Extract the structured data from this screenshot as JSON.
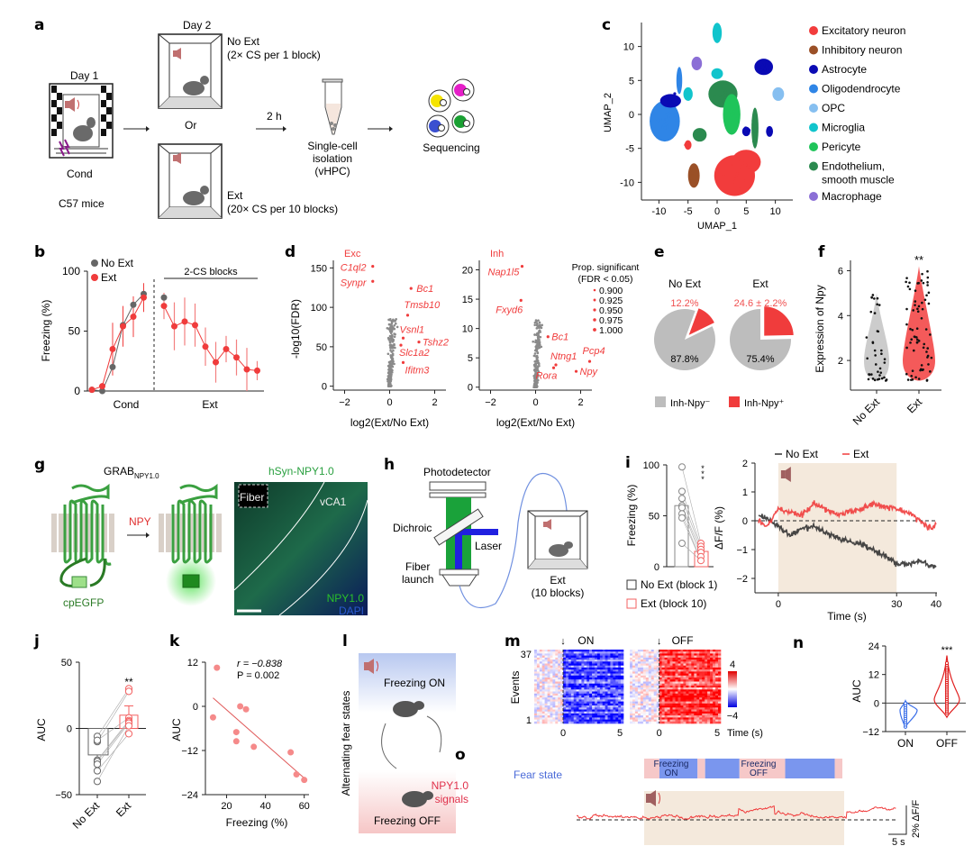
{
  "figure": {
    "panels": {
      "a": {
        "label": "a",
        "day1": "Day 1",
        "cond": "Cond",
        "mice": "C57 mice",
        "day2": "Day 2",
        "noext_title": "No Ext",
        "noext_sub": "(2× CS per 1 block)",
        "or": "Or",
        "ext_title": "Ext",
        "ext_sub": "(20× CS per 10 blocks)",
        "delay": "2 h",
        "iso1": "Single-cell",
        "iso2": "isolation",
        "iso3": "(vHPC)",
        "seq": "Sequencing",
        "cell_colors": [
          "#f5e400",
          "#e51fc8",
          "#3a4fd0",
          "#1aa033"
        ]
      },
      "b": {
        "label": "b"
      },
      "c": {
        "label": "c"
      },
      "d": {
        "label": "d"
      },
      "e": {
        "label": "e"
      },
      "f": {
        "label": "f"
      },
      "g": {
        "label": "g",
        "grab": "GRAB",
        "grab_sub": "NPY1.0",
        "npy": "NPY",
        "cpegfp": "cpEGFP",
        "img_title": "hSyn-NPY1.0",
        "fiber": "Fiber",
        "vca1": "vCA1",
        "ch1": "NPY1.0",
        "ch2": "DAPI"
      },
      "h": {
        "label": "h",
        "photodetector": "Photodetector",
        "dichroic": "Dichroic",
        "laser": "Laser",
        "fiber1": "Fiber",
        "fiber2": "launch",
        "ext1": "Ext",
        "ext2": "(10 blocks)"
      },
      "i": {
        "label": "i"
      },
      "j": {
        "label": "j"
      },
      "k": {
        "label": "k"
      },
      "l": {
        "label": "l",
        "side": "Alternating fear states",
        "on": "Freezing ON",
        "off": "Freezing OFF"
      },
      "m": {
        "label": "m"
      },
      "n": {
        "label": "n"
      },
      "o": {
        "label": "o",
        "fear_state": "Fear state",
        "on1": "Freezing",
        "on2": "ON",
        "off1": "Freezing",
        "off2": "OFF",
        "sig1": "NPY1.0",
        "sig2": "signals",
        "scale_x": "5 s",
        "scale_y": "2% ΔF/F",
        "states": [
          "off",
          "on",
          "off",
          "on",
          "off",
          "on",
          "off"
        ],
        "state_durations_s": [
          2,
          5,
          1,
          4.5,
          6,
          6.5,
          1
        ]
      }
    }
  },
  "chart_data": [
    {
      "id": "b",
      "type": "line",
      "ylabel": "Freezing (%)",
      "ylim": [
        0,
        100
      ],
      "yticks": [
        0,
        50,
        100
      ],
      "xlabels": [
        "Cond",
        "Ext"
      ],
      "bracket_label": "2-CS blocks",
      "legend": [
        "No Ext",
        "Ext"
      ],
      "legend_position": "top-left",
      "series": [
        {
          "name": "No Ext",
          "color": "#666666",
          "cond": [
            1,
            0,
            20,
            55,
            72,
            81
          ],
          "ext": [
            78
          ]
        },
        {
          "name": "Ext",
          "color": "#f03c3c",
          "cond": [
            1,
            4,
            35,
            54,
            62,
            78
          ],
          "cond_err": [
            0,
            0,
            22,
            17,
            17,
            12
          ],
          "ext": [
            71,
            54,
            58,
            55,
            37,
            24,
            35,
            28,
            18,
            17
          ],
          "ext_err": [
            11,
            20,
            20,
            18,
            16,
            17,
            11,
            15,
            18,
            8
          ]
        }
      ]
    },
    {
      "id": "c",
      "type": "scatter",
      "xlabel": "UMAP_1",
      "ylabel": "UMAP_2",
      "xticks": [
        -10,
        -5,
        0,
        5,
        10
      ],
      "yticks": [
        -10,
        -5,
        0,
        5,
        10
      ],
      "legend": [
        {
          "name": "Excitatory neuron",
          "color": "#f23c3c"
        },
        {
          "name": "Inhibitory neuron",
          "color": "#9a5027"
        },
        {
          "name": "Astrocyte",
          "color": "#0a0ab4"
        },
        {
          "name": "Oligodendrocyte",
          "color": "#2f85e6"
        },
        {
          "name": "OPC",
          "color": "#86bff0"
        },
        {
          "name": "Microglia",
          "color": "#11c4cc"
        },
        {
          "name": "Pericyte",
          "color": "#1fc45a"
        },
        {
          "name": "Endothelium, smooth muscle",
          "color": "#2b8a4f"
        },
        {
          "name": "Macrophage",
          "color": "#8b6fd6"
        }
      ],
      "clusters": [
        {
          "type": 3,
          "cx": -9,
          "cy": -1,
          "rx": 2.6,
          "ry": 3
        },
        {
          "type": 2,
          "cx": -8,
          "cy": 2,
          "rx": 1.8,
          "ry": 1
        },
        {
          "type": 0,
          "cx": 3,
          "cy": -9,
          "rx": 3.5,
          "ry": 3
        },
        {
          "type": 0,
          "cx": 5,
          "cy": -7,
          "rx": 2.5,
          "ry": 1.8
        },
        {
          "type": 1,
          "cx": -4,
          "cy": -9,
          "rx": 1,
          "ry": 1.8
        },
        {
          "type": 7,
          "cx": 1,
          "cy": 3,
          "rx": 2.5,
          "ry": 2
        },
        {
          "type": 6,
          "cx": 2.5,
          "cy": 0,
          "rx": 1.5,
          "ry": 3
        },
        {
          "type": 7,
          "cx": -3,
          "cy": -3,
          "rx": 1.2,
          "ry": 1
        },
        {
          "type": 7,
          "cx": 6.5,
          "cy": -2,
          "rx": 0.6,
          "ry": 3
        },
        {
          "type": 2,
          "cx": 8,
          "cy": 7,
          "rx": 1.6,
          "ry": 1.2
        },
        {
          "type": 4,
          "cx": 10.5,
          "cy": 3,
          "rx": 1,
          "ry": 1
        },
        {
          "type": 5,
          "cx": 0,
          "cy": 12,
          "rx": 0.8,
          "ry": 1.5
        },
        {
          "type": 5,
          "cx": 0,
          "cy": 6,
          "rx": 1,
          "ry": 0.8
        },
        {
          "type": 5,
          "cx": -5,
          "cy": 3,
          "rx": 0.8,
          "ry": 1
        },
        {
          "type": 8,
          "cx": -3.5,
          "cy": 7.5,
          "rx": 0.9,
          "ry": 1
        },
        {
          "type": 3,
          "cx": -6.5,
          "cy": 5,
          "rx": 0.5,
          "ry": 2
        },
        {
          "type": 0,
          "cx": -5,
          "cy": -4.5,
          "rx": 0.6,
          "ry": 0.7
        },
        {
          "type": 2,
          "cx": 5,
          "cy": -2.5,
          "rx": 0.7,
          "ry": 0.7
        },
        {
          "type": 2,
          "cx": 9,
          "cy": -2.5,
          "rx": 0.6,
          "ry": 0.8
        }
      ]
    },
    {
      "id": "d-exc",
      "type": "scatter",
      "title": "Exc",
      "xlabel": "log2(Ext/No Ext)",
      "ylabel": "-log10(FDR)",
      "xlim": [
        -2.5,
        2.5
      ],
      "ylim": [
        -5,
        155
      ],
      "xticks": [
        -2,
        0,
        2
      ],
      "yticks": [
        0,
        50,
        100,
        150
      ],
      "labeled": [
        {
          "gene": "C1ql2",
          "x": -0.75,
          "y": 152
        },
        {
          "gene": "Synpr",
          "x": -0.75,
          "y": 133
        },
        {
          "gene": "Bc1",
          "x": 0.95,
          "y": 124
        },
        {
          "gene": "Tmsb10",
          "x": 0.8,
          "y": 90
        },
        {
          "gene": "Vsnl1",
          "x": 0.6,
          "y": 61
        },
        {
          "gene": "Tshz2",
          "x": 1.3,
          "y": 56
        },
        {
          "gene": "Slc1a2",
          "x": 0.5,
          "y": 52
        },
        {
          "gene": "Ifitm3",
          "x": 0.6,
          "y": 30
        }
      ]
    },
    {
      "id": "d-inh",
      "type": "scatter",
      "title": "Inh",
      "xlabel": "log2(Ext/No Ext)",
      "ylabel": "",
      "xlim": [
        -2.5,
        2.5
      ],
      "ylim": [
        -0.5,
        21
      ],
      "xticks": [
        -2,
        0,
        2
      ],
      "yticks": [
        0,
        5,
        10,
        15,
        20
      ],
      "legend_title": "Prop. significant",
      "legend_sub": "(FDR < 0.05)",
      "legend_values": [
        "0.900",
        "0.925",
        "0.950",
        "0.975",
        "1.000"
      ],
      "labeled": [
        {
          "gene": "Nap1l5",
          "x": -0.6,
          "y": 20.6
        },
        {
          "gene": "Fxyd6",
          "x": -0.65,
          "y": 14.8
        },
        {
          "gene": "Bc1",
          "x": 0.55,
          "y": 8.6
        },
        {
          "gene": "Ntng1",
          "x": 0.9,
          "y": 3.8
        },
        {
          "gene": "Rora",
          "x": 0.8,
          "y": 3.3
        },
        {
          "gene": "Pcp4",
          "x": 2.4,
          "y": 4.4
        },
        {
          "gene": "Npy",
          "x": 1.8,
          "y": 2.7
        }
      ]
    },
    {
      "id": "e",
      "type": "pie",
      "pies": [
        {
          "title": "No Ext",
          "neg": 87.8,
          "pos": 12.2,
          "pos_label": "12.2%",
          "neg_label": "87.8%"
        },
        {
          "title": "Ext",
          "neg": 75.4,
          "pos": 24.6,
          "pos_label": "24.6 ± 2.2%",
          "neg_label": "75.4%"
        }
      ],
      "legend": [
        {
          "name": "Inh-Npy⁻",
          "color": "#bdbdbd"
        },
        {
          "name": "Inh-Npy⁺",
          "color": "#f03c3c"
        }
      ]
    },
    {
      "id": "f",
      "type": "violin",
      "ylabel": "Expression of Npy",
      "yticks": [
        2,
        4,
        6
      ],
      "ylim": [
        1,
        6.3
      ],
      "categories": [
        "No Ext",
        "Ext"
      ],
      "significance": "**",
      "colors": [
        "#cccccc",
        "#f45a5a"
      ],
      "max": [
        5.0,
        6.2
      ]
    },
    {
      "id": "i-bar",
      "type": "bar",
      "ylabel": "Freezing (%)",
      "ylim": [
        0,
        100
      ],
      "yticks": [
        0,
        50,
        100
      ],
      "categories": [
        "No Ext (block 1)",
        "Ext (block 10)"
      ],
      "values": [
        60,
        15
      ],
      "significance": "***",
      "points_noext": [
        98,
        74,
        67,
        60,
        58,
        52,
        48,
        23
      ],
      "points_ext": [
        23,
        20,
        17,
        14,
        10,
        6
      ]
    },
    {
      "id": "i-trace",
      "type": "line",
      "xlabel": "Time (s)",
      "ylabel": "ΔF/F (%)",
      "xlim": [
        -5,
        40
      ],
      "ylim": [
        -2.5,
        2
      ],
      "xticks": [
        0,
        30,
        40
      ],
      "yticks": [
        -2,
        -1,
        0,
        1,
        2
      ],
      "shaded": [
        0,
        30
      ],
      "legend": [
        "No Ext",
        "Ext"
      ],
      "series": [
        {
          "name": "No Ext",
          "color": "#333333",
          "x": [
            -5,
            -3,
            0,
            3,
            6,
            9,
            12,
            15,
            18,
            21,
            24,
            27,
            30,
            33,
            36,
            39,
            40
          ],
          "y": [
            0.2,
            0.1,
            -0.2,
            -0.5,
            -0.3,
            -0.2,
            -0.4,
            -0.6,
            -0.7,
            -0.8,
            -1.0,
            -1.2,
            -1.5,
            -1.5,
            -1.4,
            -1.6,
            -1.6
          ]
        },
        {
          "name": "Ext",
          "color": "#f03c3c",
          "x": [
            -5,
            -3,
            0,
            3,
            6,
            9,
            12,
            15,
            18,
            21,
            24,
            27,
            30,
            33,
            36,
            39,
            40
          ],
          "y": [
            0.0,
            -0.2,
            0.4,
            0.3,
            0.2,
            0.6,
            0.4,
            0.2,
            0.3,
            0.4,
            0.6,
            0.5,
            0.4,
            0.3,
            0.0,
            -0.3,
            -0.1
          ]
        }
      ]
    },
    {
      "id": "j",
      "type": "bar",
      "ylabel": "AUC",
      "ylim": [
        -50,
        50
      ],
      "yticks": [
        -50,
        0,
        50
      ],
      "categories": [
        "No Ext",
        "Ext"
      ],
      "values": [
        -20,
        10
      ],
      "err": [
        8,
        7
      ],
      "significance": "**",
      "points_noext": [
        -6,
        -10,
        -9,
        -24,
        -25,
        -27,
        -32,
        -40
      ],
      "points_ext": [
        30,
        28,
        8,
        6,
        5,
        4,
        -4,
        2
      ]
    },
    {
      "id": "k",
      "type": "scatter",
      "xlabel": "Freezing (%)",
      "ylabel": "AUC",
      "xlim": [
        10,
        62
      ],
      "ylim": [
        -24,
        12
      ],
      "xticks": [
        20,
        40,
        60
      ],
      "yticks": [
        -24,
        -12,
        0,
        12
      ],
      "annot_r": "r = −0.838",
      "annot_p": "P = 0.002",
      "x": [
        13,
        15,
        25,
        25,
        27,
        30,
        34,
        53,
        56,
        60
      ],
      "y": [
        -3,
        10.5,
        -7,
        -9.5,
        0,
        -0.8,
        -11,
        -12.5,
        -18.5,
        -20
      ],
      "fit": [
        [
          13,
          2.3
        ],
        [
          60,
          -19.5
        ]
      ]
    },
    {
      "id": "m",
      "type": "heatmap",
      "panels": [
        "ON",
        "OFF"
      ],
      "ylabel": "Events",
      "yticks": [
        "37",
        "1"
      ],
      "xticks": [
        0,
        5
      ],
      "xlabel": "Time (s)",
      "colorbar": [
        -4,
        4
      ],
      "n_events": 37
    },
    {
      "id": "n",
      "type": "violin",
      "ylabel": "AUC",
      "yticks": [
        -12,
        0,
        12,
        24
      ],
      "ylim": [
        -12,
        24
      ],
      "categories": [
        "ON",
        "OFF"
      ],
      "colors": [
        "#3a6ee8",
        "#e02020"
      ],
      "significance": "***"
    }
  ]
}
